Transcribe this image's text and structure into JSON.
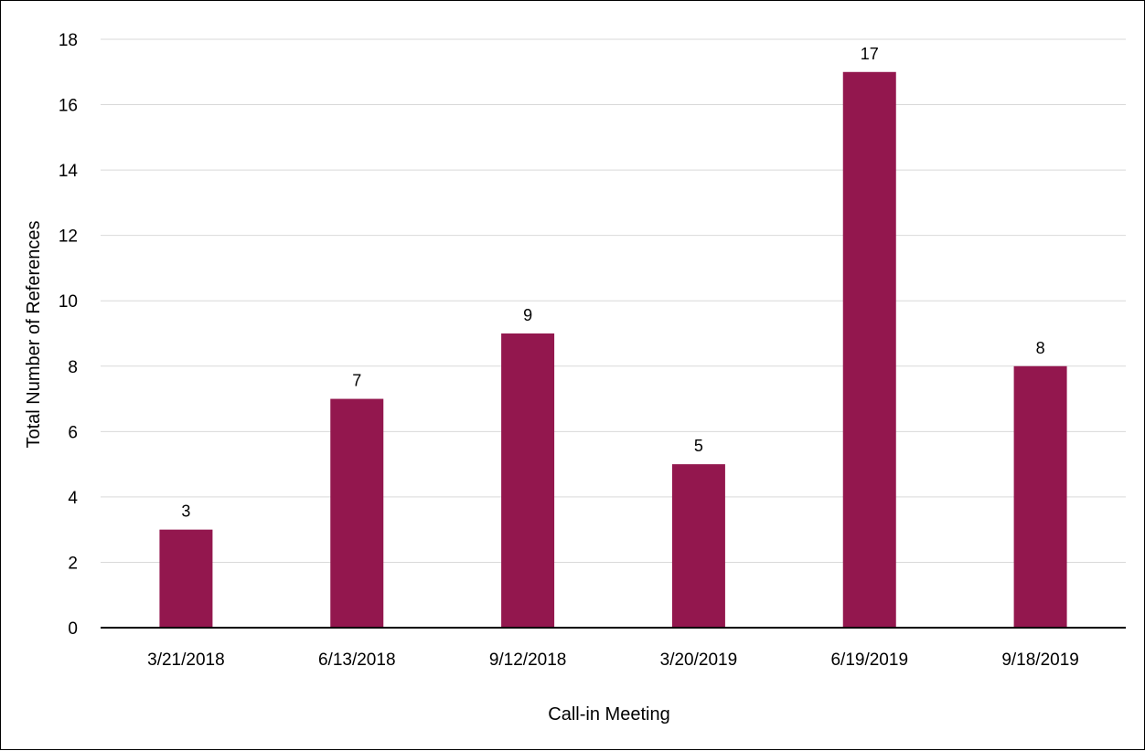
{
  "chart_data": {
    "type": "bar",
    "categories": [
      "3/21/2018",
      "6/13/2018",
      "9/12/2018",
      "3/20/2019",
      "6/19/2019",
      "9/18/2019"
    ],
    "values": [
      3,
      7,
      9,
      5,
      17,
      8
    ],
    "data_labels": [
      "3",
      "7",
      "9",
      "5",
      "17",
      "8"
    ],
    "xlabel": "Call-in Meeting",
    "ylabel": "Total Number of References",
    "ylim": [
      0,
      18
    ],
    "yticks": [
      "0",
      "2",
      "4",
      "6",
      "8",
      "10",
      "12",
      "14",
      "16",
      "18"
    ],
    "grid": true,
    "legend": false,
    "colors": {
      "bar": "#93174E",
      "grid": "#D9D9D9",
      "axis": "#000000"
    }
  }
}
